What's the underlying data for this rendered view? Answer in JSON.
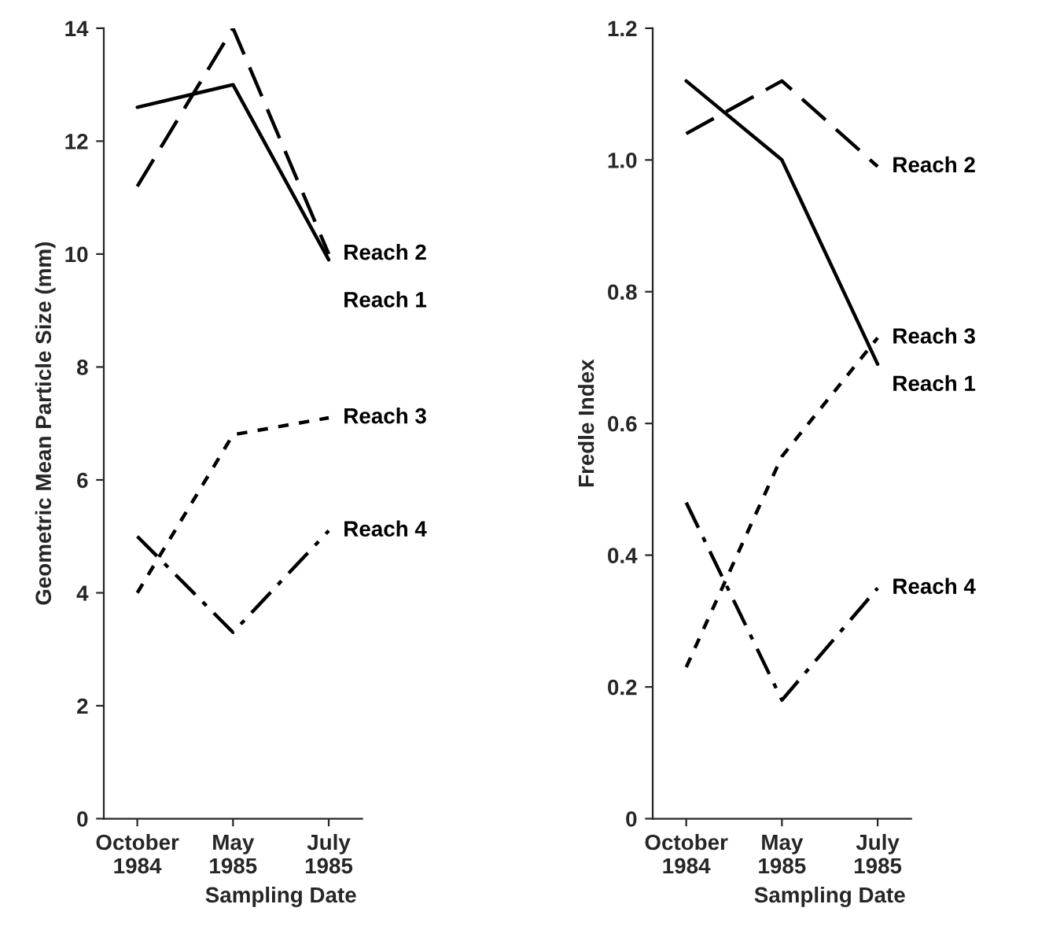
{
  "chart_data": [
    {
      "type": "line",
      "ylabel": "Geometric Mean Particle Size (mm)",
      "xlabel": "Sampling Date",
      "categories": [
        "October\n1984",
        "May\n1985",
        "July\n1985"
      ],
      "ylim": [
        0,
        14
      ],
      "yticks": [
        0,
        2,
        4,
        6,
        8,
        10,
        12,
        14
      ],
      "grid": false,
      "marker": "none",
      "series": [
        {
          "name": "Reach 1",
          "color": "#000000",
          "line_style": "solid",
          "values": [
            12.6,
            13.0,
            9.9
          ]
        },
        {
          "name": "Reach 2",
          "color": "#000000",
          "line_style": "dashed",
          "values": [
            11.2,
            14.0,
            10.0
          ]
        },
        {
          "name": "Reach 3",
          "color": "#000000",
          "line_style": "dotted",
          "values": [
            4.0,
            6.8,
            7.1
          ]
        },
        {
          "name": "Reach 4",
          "color": "#000000",
          "line_style": "dashdot",
          "values": [
            5.0,
            3.3,
            5.1
          ]
        }
      ]
    },
    {
      "type": "line",
      "ylabel": "Fredle Index",
      "xlabel": "Sampling Date",
      "categories": [
        "October\n1984",
        "May\n1985",
        "July\n1985"
      ],
      "ylim": [
        0,
        1.2
      ],
      "yticks": [
        0,
        0.2,
        0.4,
        0.6,
        0.8,
        {
          "value": 1.0,
          "label": "1.0"
        },
        1.2
      ],
      "grid": false,
      "marker": "none",
      "series": [
        {
          "name": "Reach 1",
          "color": "#000000",
          "line_style": "solid",
          "values": [
            1.12,
            1.0,
            0.69
          ]
        },
        {
          "name": "Reach 2",
          "color": "#000000",
          "line_style": "dashed",
          "values": [
            1.04,
            1.12,
            0.99
          ]
        },
        {
          "name": "Reach 3",
          "color": "#000000",
          "line_style": "dotted",
          "values": [
            0.23,
            0.55,
            0.73
          ]
        },
        {
          "name": "Reach 4",
          "color": "#000000",
          "line_style": "dashdot",
          "values": [
            0.48,
            0.18,
            0.35
          ]
        }
      ]
    }
  ]
}
